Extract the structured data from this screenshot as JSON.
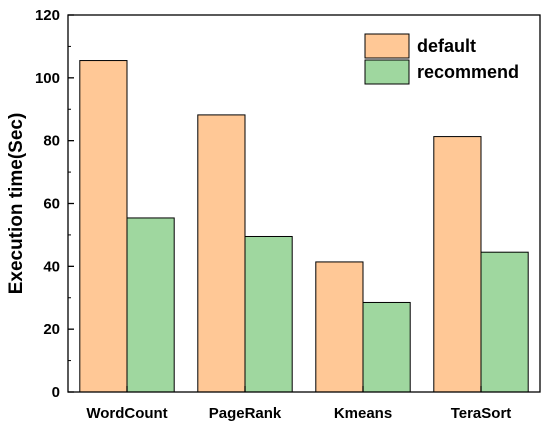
{
  "chart_data": {
    "type": "bar",
    "title": "",
    "xlabel": "",
    "ylabel": "Execution time(Sec)",
    "categories": [
      "WordCount",
      "PageRank",
      "Kmeans",
      "TeraSort"
    ],
    "series": [
      {
        "name": "default",
        "values": [
          105.5,
          88.2,
          41.4,
          81.3
        ],
        "color": "#FFC896"
      },
      {
        "name": "recommend",
        "values": [
          55.4,
          49.5,
          28.5,
          44.5
        ],
        "color": "#9FD79F"
      }
    ],
    "ylim": [
      0,
      120
    ],
    "yticks": [
      0,
      20,
      40,
      60,
      80,
      100,
      120
    ],
    "grid": false,
    "legend_position": "top-right"
  }
}
